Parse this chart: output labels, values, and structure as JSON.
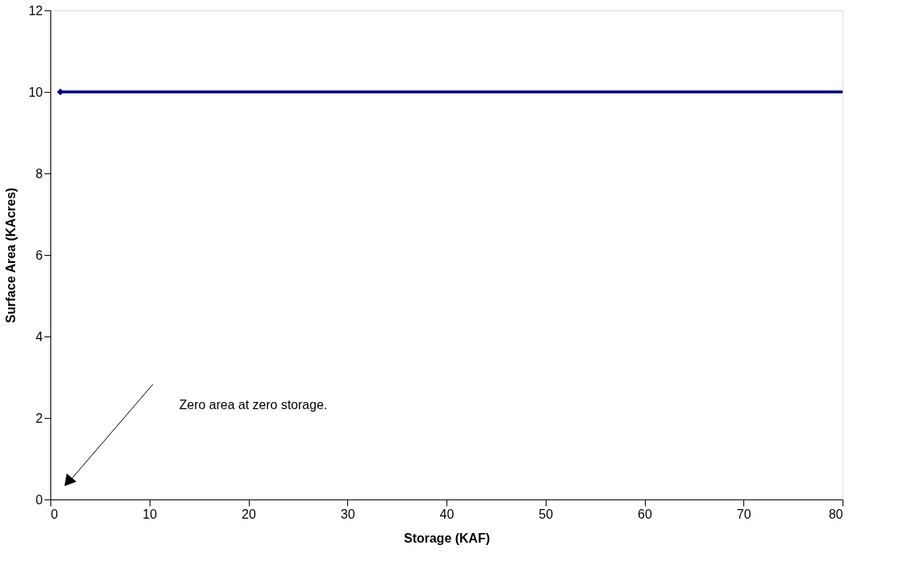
{
  "chart_data": {
    "type": "line",
    "xlabel": "Storage (KAF)",
    "ylabel": "Surface Area (KAcres)",
    "x": [
      1,
      80
    ],
    "series": [
      {
        "color": "#000080",
        "values": [
          10,
          10
        ]
      }
    ],
    "xlim": [
      0,
      80
    ],
    "xticks": [
      0,
      10,
      20,
      30,
      40,
      50,
      60,
      70,
      80
    ],
    "ylim": [
      0,
      12
    ],
    "yticks": [
      0,
      2,
      4,
      6,
      8,
      10,
      12
    ],
    "grid": false,
    "marker": "diamond",
    "line_style": "solid",
    "annotations": [
      "Zero area at zero storage."
    ]
  }
}
